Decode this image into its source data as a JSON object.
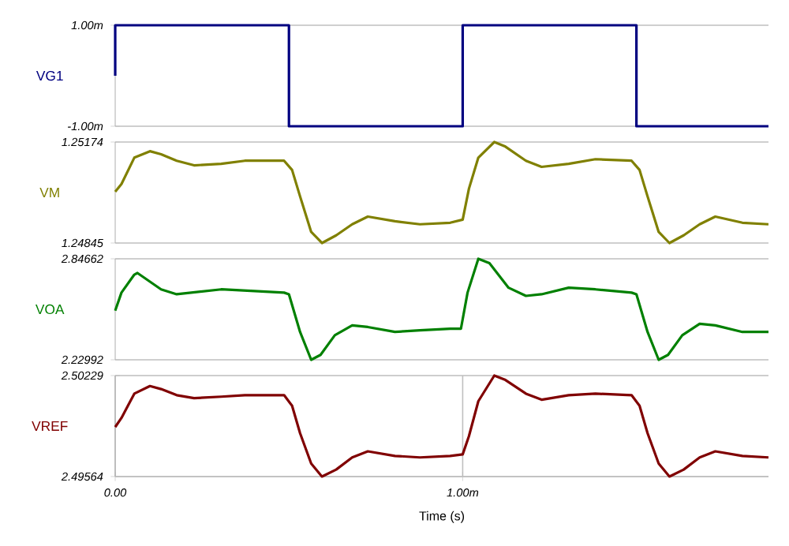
{
  "chart_data": [
    {
      "type": "step",
      "ylabel": "VG1",
      "color": "#000080",
      "tick_labels": "y",
      "x": [
        0,
        0,
        0.5,
        1,
        1.5,
        1.88
      ],
      "values": [
        0,
        1,
        -1,
        1,
        -1,
        -1
      ],
      "xlim": [
        0,
        1.88
      ],
      "ylim": [
        -1,
        1
      ],
      "yticks": [
        {
          "value": -1,
          "label": "-1.00m"
        },
        {
          "value": 1,
          "label": "1.00m"
        }
      ]
    },
    {
      "type": "line",
      "ylabel": "VM",
      "color": "#808000",
      "tick_labels": "y",
      "x": [
        0,
        0.018,
        0.055,
        0.1,
        0.132,
        0.177,
        0.227,
        0.305,
        0.373,
        0.486,
        0.509,
        0.532,
        0.564,
        0.595,
        0.636,
        0.682,
        0.727,
        0.805,
        0.877,
        0.964,
        1,
        1.018,
        1.045,
        1.091,
        1.123,
        1.182,
        1.227,
        1.305,
        1.382,
        1.486,
        1.509,
        1.532,
        1.564,
        1.595,
        1.636,
        1.682,
        1.727,
        1.805,
        1.88
      ],
      "values": [
        1.25012,
        1.25037,
        1.25123,
        1.25144,
        1.25134,
        1.25113,
        1.25098,
        1.25103,
        1.25113,
        1.25113,
        1.25083,
        1.24997,
        1.24881,
        1.24845,
        1.2487,
        1.24906,
        1.24931,
        1.24916,
        1.24906,
        1.24911,
        1.24921,
        1.25022,
        1.25123,
        1.25174,
        1.25159,
        1.25113,
        1.25093,
        1.25103,
        1.25118,
        1.25113,
        1.25083,
        1.24997,
        1.24881,
        1.24845,
        1.2487,
        1.24906,
        1.24931,
        1.24911,
        1.24906
      ],
      "xlim": [
        0,
        1.88
      ],
      "ylim": [
        1.24845,
        1.25174
      ],
      "yticks": [
        1.24845,
        1.25174
      ]
    },
    {
      "type": "line",
      "ylabel": "VOA",
      "color": "#008000",
      "tick_labels": "y",
      "x": [
        0,
        0.018,
        0.055,
        0.064,
        0.132,
        0.177,
        0.305,
        0.486,
        0.5,
        0.532,
        0.564,
        0.591,
        0.632,
        0.682,
        0.727,
        0.805,
        0.877,
        0.964,
        0.995,
        1.014,
        1.045,
        1.077,
        1.132,
        1.182,
        1.227,
        1.305,
        1.382,
        1.486,
        1.5,
        1.532,
        1.564,
        1.591,
        1.632,
        1.682,
        1.727,
        1.805,
        1.88
      ],
      "values": [
        2.53,
        2.64,
        2.75,
        2.76,
        2.66,
        2.63,
        2.66,
        2.64,
        2.63,
        2.4,
        2.22992,
        2.26,
        2.38,
        2.44,
        2.43,
        2.4,
        2.41,
        2.42,
        2.42,
        2.64,
        2.84662,
        2.82,
        2.67,
        2.62,
        2.63,
        2.67,
        2.66,
        2.64,
        2.63,
        2.4,
        2.22992,
        2.26,
        2.38,
        2.45,
        2.44,
        2.4,
        2.4
      ],
      "xlim": [
        0,
        1.88
      ],
      "ylim": [
        2.22992,
        2.84662
      ],
      "yticks": [
        2.22992,
        2.84662
      ]
    },
    {
      "type": "line",
      "ylabel": "VREF",
      "xlabel": "Time (s)",
      "color": "#800000",
      "grid": true,
      "x": [
        0,
        0.018,
        0.055,
        0.1,
        0.132,
        0.177,
        0.227,
        0.305,
        0.373,
        0.486,
        0.509,
        0.532,
        0.564,
        0.595,
        0.636,
        0.682,
        0.727,
        0.805,
        0.877,
        0.964,
        1,
        1.018,
        1.045,
        1.091,
        1.123,
        1.182,
        1.227,
        1.305,
        1.382,
        1.486,
        1.509,
        1.532,
        1.564,
        1.595,
        1.636,
        1.682,
        1.727,
        1.805,
        1.88
      ],
      "values": [
        2.4989,
        2.4995,
        2.5011,
        2.5016,
        2.5014,
        2.501,
        2.5008,
        2.5009,
        2.501,
        2.501,
        2.5003,
        2.4985,
        2.4965,
        2.49564,
        2.4961,
        2.4969,
        2.4973,
        2.497,
        2.4969,
        2.497,
        2.4971,
        2.4983,
        2.5006,
        2.50229,
        2.502,
        2.5011,
        2.5007,
        2.501,
        2.5011,
        2.501,
        2.5003,
        2.4985,
        2.4965,
        2.49564,
        2.4961,
        2.4969,
        2.4973,
        2.497,
        2.4969
      ],
      "xlim": [
        0,
        1.88
      ],
      "xticks": [
        {
          "value": 0,
          "label": "0.00"
        },
        {
          "value": 1,
          "label": "1.00m"
        }
      ],
      "ylim": [
        2.49564,
        2.50229
      ],
      "yticks": [
        2.49564,
        2.50229
      ]
    }
  ]
}
